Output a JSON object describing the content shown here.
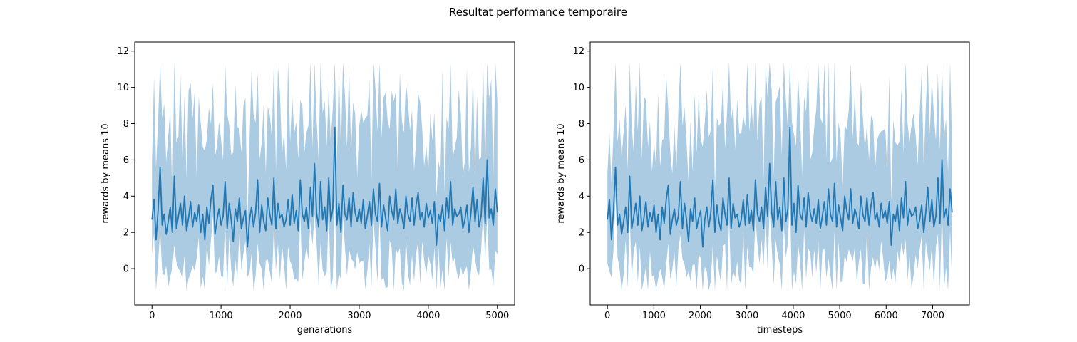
{
  "figure": {
    "suptitle": "Resultat performance temporaire"
  },
  "colors": {
    "line": "#1f77b4",
    "band": "#a6c8e2",
    "axes": "#000000",
    "background": "#ffffff"
  },
  "chart_data": [
    {
      "type": "line",
      "title": "",
      "xlabel": "genarations",
      "ylabel": "rewards by means 10",
      "xlim": [
        -250,
        5250
      ],
      "ylim": [
        -2.0,
        12.5
      ],
      "xticks": [
        0,
        1000,
        2000,
        3000,
        4000,
        5000
      ],
      "xtick_labels": [
        "0",
        "1000",
        "2000",
        "3000",
        "4000",
        "5000"
      ],
      "yticks": [
        0,
        2,
        4,
        6,
        8,
        10,
        12
      ],
      "ytick_labels": [
        "0",
        "2",
        "4",
        "6",
        "8",
        "10",
        "12"
      ],
      "grid": false,
      "series": [
        {
          "x_start": 0,
          "x_end": 5000,
          "mean": [
            2.7,
            3.8,
            1.6,
            3.2,
            5.6,
            2.4,
            3.0,
            1.9,
            2.6,
            3.4,
            2.0,
            5.1,
            2.2,
            2.9,
            3.6,
            2.4,
            4.0,
            2.1,
            2.8,
            3.7,
            2.3,
            3.1,
            2.6,
            3.5,
            2.0,
            3.0,
            1.6,
            3.4,
            2.5,
            3.8,
            4.6,
            1.9,
            2.7,
            3.3,
            2.4,
            2.9,
            4.8,
            2.2,
            3.6,
            2.7,
            1.5,
            3.3,
            2.6,
            3.9,
            2.2,
            2.8,
            3.2,
            1.2,
            2.7,
            3.4,
            2.3,
            3.1,
            4.9,
            2.0,
            3.5,
            2.6,
            2.1,
            3.9,
            3.0,
            2.4,
            5.0,
            2.2,
            3.6,
            2.8,
            3.0,
            2.3,
            2.7,
            3.8,
            2.4,
            4.1,
            2.5,
            3.2,
            2.1,
            4.9,
            3.0,
            2.6,
            3.4,
            2.2,
            4.5,
            2.9,
            5.8,
            3.1,
            2.3,
            4.8,
            2.7,
            3.4,
            2.1,
            5.0,
            2.6,
            3.3,
            7.8,
            2.4,
            3.6,
            2.0,
            4.6,
            3.0,
            2.7,
            3.9,
            2.3,
            4.2,
            3.1,
            2.6,
            3.3,
            2.5,
            3.8,
            2.2,
            2.9,
            3.7,
            2.4,
            4.4,
            3.0,
            2.6,
            4.7,
            2.3,
            3.5,
            2.8,
            2.1,
            4.0,
            3.2,
            2.7,
            4.4,
            2.5,
            3.3,
            2.9,
            2.2,
            4.0,
            3.0,
            2.6,
            3.9,
            2.4,
            3.5,
            4.2,
            2.7,
            3.1,
            2.3,
            3.6,
            2.8,
            3.2,
            2.5,
            3.7,
            1.3,
            3.0,
            2.6,
            3.5,
            2.1,
            3.9,
            2.8,
            4.8,
            2.4,
            3.3,
            2.9,
            3.0,
            3.4,
            2.2,
            2.7,
            3.5,
            2.0,
            3.1,
            4.5,
            2.6,
            3.8,
            2.3,
            2.9,
            5.0,
            2.5,
            6.0,
            2.8,
            3.3,
            2.4,
            4.4,
            3.1
          ]
        }
      ]
    },
    {
      "type": "line",
      "title": "",
      "xlabel": "timesteps",
      "ylabel": "rewards by means 10",
      "xlim": [
        -371,
        7791
      ],
      "ylim": [
        -2.0,
        12.5
      ],
      "xticks": [
        0,
        1000,
        2000,
        3000,
        4000,
        5000,
        6000,
        7000
      ],
      "xtick_labels": [
        "0",
        "1000",
        "2000",
        "3000",
        "4000",
        "5000",
        "6000",
        "7000"
      ],
      "yticks": [
        0,
        2,
        4,
        6,
        8,
        10,
        12
      ],
      "ytick_labels": [
        "0",
        "2",
        "4",
        "6",
        "8",
        "10",
        "12"
      ],
      "grid": false,
      "series": [
        {
          "x_start": 0,
          "x_end": 7420,
          "mean": [
            2.7,
            3.8,
            1.6,
            3.2,
            5.6,
            2.4,
            3.0,
            1.9,
            2.6,
            3.4,
            2.0,
            5.1,
            2.2,
            2.9,
            3.6,
            2.4,
            4.0,
            2.1,
            2.8,
            3.7,
            2.3,
            3.1,
            2.6,
            3.5,
            2.0,
            3.0,
            1.6,
            3.4,
            2.5,
            3.8,
            4.6,
            1.9,
            2.7,
            3.3,
            2.4,
            2.9,
            4.8,
            2.2,
            3.6,
            2.7,
            1.5,
            3.3,
            2.6,
            3.9,
            2.2,
            2.8,
            3.2,
            1.2,
            2.7,
            3.4,
            2.3,
            3.1,
            4.9,
            2.0,
            3.5,
            2.6,
            2.1,
            3.9,
            3.0,
            2.4,
            5.0,
            2.2,
            3.6,
            2.8,
            3.0,
            2.3,
            2.7,
            3.8,
            2.4,
            4.1,
            2.5,
            3.2,
            2.1,
            4.9,
            3.0,
            2.6,
            3.4,
            2.2,
            4.5,
            2.9,
            5.8,
            3.1,
            2.3,
            4.8,
            2.7,
            3.4,
            2.1,
            5.0,
            2.6,
            3.3,
            7.8,
            2.4,
            3.6,
            2.0,
            4.6,
            3.0,
            2.7,
            3.9,
            2.3,
            4.2,
            3.1,
            2.6,
            3.3,
            2.5,
            3.8,
            2.2,
            2.9,
            3.7,
            2.4,
            4.4,
            3.0,
            2.6,
            4.7,
            2.3,
            3.5,
            2.8,
            2.1,
            4.0,
            3.2,
            2.7,
            4.4,
            2.5,
            3.3,
            2.9,
            2.2,
            4.0,
            3.0,
            2.6,
            3.9,
            2.4,
            3.5,
            4.2,
            2.7,
            3.1,
            2.3,
            3.6,
            2.8,
            3.2,
            2.5,
            3.7,
            1.3,
            3.0,
            2.6,
            3.5,
            2.1,
            3.9,
            2.8,
            4.8,
            2.4,
            3.3,
            2.9,
            3.0,
            3.4,
            2.2,
            2.7,
            3.5,
            2.0,
            3.1,
            4.5,
            2.6,
            3.8,
            2.3,
            2.9,
            5.0,
            2.5,
            6.0,
            2.8,
            3.3,
            2.4,
            4.4,
            3.1
          ]
        }
      ]
    }
  ]
}
